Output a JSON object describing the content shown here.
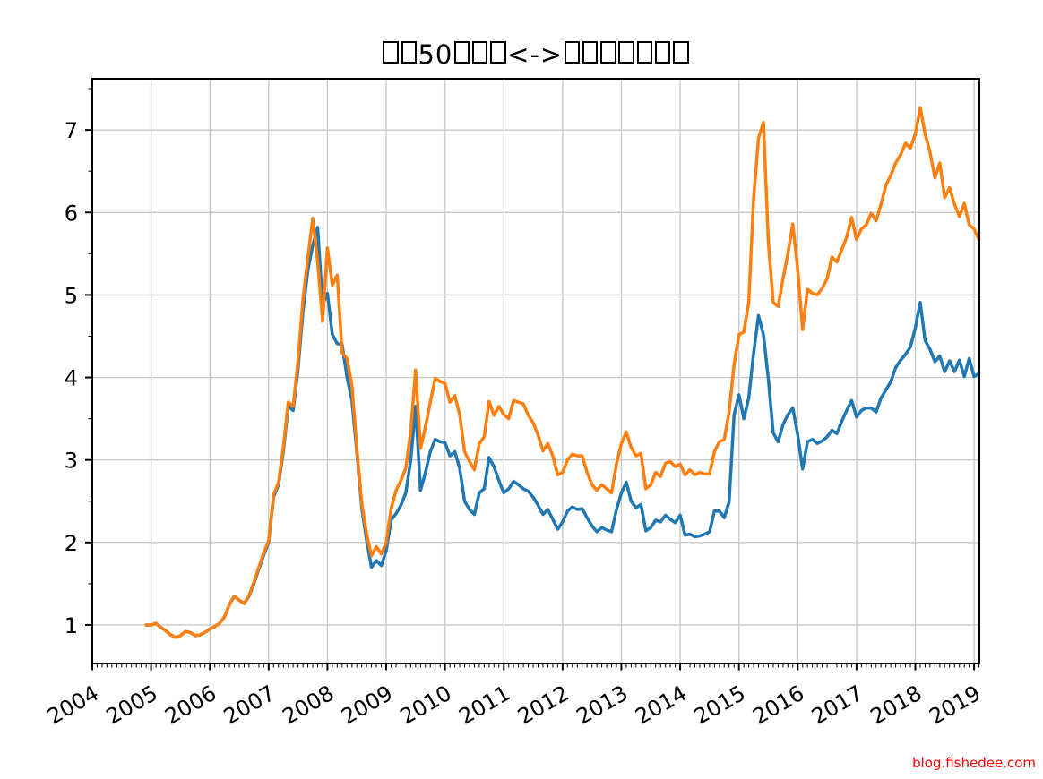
{
  "figure": {
    "title": "□□50□□□<->□□□□□□□",
    "watermark": "blog.fishedee.com",
    "watermark_color": "#ff0000",
    "background": "#ffffff"
  },
  "chart_data": {
    "type": "line",
    "title": "□□50□□□<->□□□□□□□",
    "xlabel": "",
    "ylabel": "",
    "x_tick_labels": [
      "2004",
      "2005",
      "2006",
      "2007",
      "2008",
      "2009",
      "2010",
      "2011",
      "2012",
      "2013",
      "2014",
      "2015",
      "2016",
      "2017",
      "2018",
      "2019"
    ],
    "y_tick_labels": [
      1,
      2,
      3,
      4,
      5,
      6,
      7
    ],
    "xlim": [
      2004.0,
      2019.09
    ],
    "ylim": [
      0.533,
      7.62
    ],
    "grid": true,
    "legend": "none",
    "x_start_year": 2004,
    "x_start_month": 12,
    "x_step": "monthly",
    "colors": {
      "grid": "#c9c9c9",
      "spine": "#000000",
      "blue": "#1f77b4",
      "orange": "#ff7f0e"
    },
    "series": [
      {
        "name": "blue",
        "color": "#1f77b4",
        "values": [
          1.0,
          1.0,
          1.02,
          0.97,
          0.93,
          0.88,
          0.85,
          0.87,
          0.92,
          0.91,
          0.87,
          0.88,
          0.91,
          0.95,
          0.98,
          1.02,
          1.1,
          1.25,
          1.35,
          1.3,
          1.26,
          1.35,
          1.5,
          1.68,
          1.85,
          2.0,
          2.55,
          2.7,
          3.1,
          3.65,
          3.6,
          4.1,
          4.8,
          5.3,
          5.6,
          5.82,
          4.88,
          5.02,
          4.52,
          4.41,
          4.4,
          4.0,
          3.72,
          3.1,
          2.42,
          2.02,
          1.7,
          1.78,
          1.72,
          1.9,
          2.27,
          2.35,
          2.45,
          2.6,
          3.0,
          3.65,
          2.63,
          2.85,
          3.1,
          3.25,
          3.22,
          3.21,
          3.05,
          3.1,
          2.9,
          2.5,
          2.4,
          2.34,
          2.6,
          2.65,
          3.03,
          2.92,
          2.75,
          2.6,
          2.65,
          2.74,
          2.7,
          2.65,
          2.62,
          2.55,
          2.45,
          2.34,
          2.4,
          2.28,
          2.16,
          2.25,
          2.38,
          2.43,
          2.4,
          2.41,
          2.3,
          2.2,
          2.13,
          2.18,
          2.15,
          2.13,
          2.4,
          2.6,
          2.73,
          2.5,
          2.42,
          2.46,
          2.14,
          2.18,
          2.27,
          2.25,
          2.33,
          2.28,
          2.24,
          2.33,
          2.09,
          2.1,
          2.07,
          2.08,
          2.1,
          2.13,
          2.38,
          2.38,
          2.3,
          2.49,
          3.54,
          3.79,
          3.5,
          3.75,
          4.3,
          4.75,
          4.52,
          3.98,
          3.33,
          3.22,
          3.43,
          3.55,
          3.63,
          3.3,
          2.89,
          3.22,
          3.25,
          3.2,
          3.23,
          3.28,
          3.36,
          3.32,
          3.47,
          3.6,
          3.72,
          3.52,
          3.6,
          3.63,
          3.63,
          3.58,
          3.75,
          3.85,
          3.95,
          4.12,
          4.21,
          4.28,
          4.37,
          4.6,
          4.91,
          4.45,
          4.34,
          4.19,
          4.26,
          4.07,
          4.2,
          4.07,
          4.21,
          4.01,
          4.23,
          4.01,
          4.05
        ]
      },
      {
        "name": "orange",
        "color": "#ff7f0e",
        "values": [
          1.0,
          1.0,
          1.02,
          0.97,
          0.93,
          0.88,
          0.85,
          0.87,
          0.92,
          0.91,
          0.87,
          0.88,
          0.91,
          0.95,
          0.98,
          1.02,
          1.1,
          1.25,
          1.35,
          1.3,
          1.26,
          1.36,
          1.52,
          1.7,
          1.88,
          2.02,
          2.58,
          2.73,
          3.15,
          3.7,
          3.65,
          4.2,
          4.95,
          5.45,
          5.93,
          5.4,
          4.68,
          5.57,
          5.12,
          5.24,
          4.3,
          4.23,
          3.9,
          3.15,
          2.48,
          2.1,
          1.84,
          1.95,
          1.86,
          2.0,
          2.41,
          2.63,
          2.75,
          2.9,
          3.35,
          4.09,
          3.14,
          3.4,
          3.7,
          3.99,
          3.95,
          3.93,
          3.7,
          3.78,
          3.55,
          3.1,
          2.98,
          2.88,
          3.2,
          3.28,
          3.71,
          3.54,
          3.65,
          3.55,
          3.5,
          3.72,
          3.7,
          3.68,
          3.54,
          3.45,
          3.3,
          3.11,
          3.2,
          3.05,
          2.82,
          2.85,
          3.0,
          3.07,
          3.05,
          3.05,
          2.85,
          2.7,
          2.63,
          2.7,
          2.65,
          2.6,
          2.95,
          3.2,
          3.34,
          3.15,
          3.05,
          3.08,
          2.65,
          2.7,
          2.85,
          2.8,
          2.96,
          2.98,
          2.92,
          2.95,
          2.82,
          2.88,
          2.82,
          2.85,
          2.83,
          2.83,
          3.1,
          3.22,
          3.25,
          3.58,
          4.15,
          4.52,
          4.55,
          4.91,
          6.18,
          6.9,
          7.09,
          5.64,
          4.91,
          4.86,
          5.2,
          5.5,
          5.86,
          5.3,
          4.58,
          5.07,
          5.02,
          5.0,
          5.08,
          5.2,
          5.46,
          5.4,
          5.55,
          5.7,
          5.94,
          5.67,
          5.8,
          5.85,
          5.99,
          5.9,
          6.1,
          6.33,
          6.45,
          6.6,
          6.7,
          6.84,
          6.78,
          6.95,
          7.27,
          6.95,
          6.73,
          6.42,
          6.6,
          6.18,
          6.3,
          6.1,
          5.95,
          6.11,
          5.85,
          5.8,
          5.67
        ]
      }
    ]
  }
}
